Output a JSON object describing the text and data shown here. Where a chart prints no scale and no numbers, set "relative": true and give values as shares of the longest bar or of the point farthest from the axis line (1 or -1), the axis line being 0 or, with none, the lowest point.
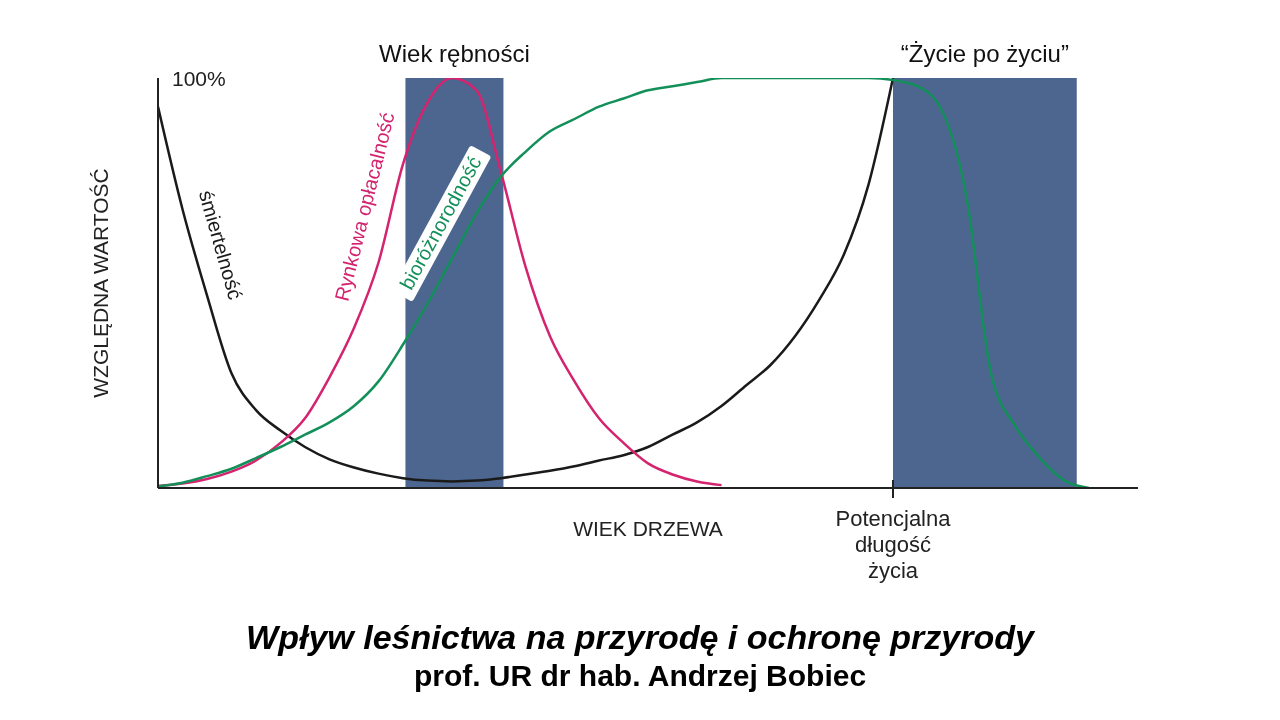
{
  "chart_data": {
    "type": "line",
    "title": "Wpływ leśnictwa na przyrodę i ochronę przyrody",
    "subtitle": "prof. UR dr hab. Andrzej Bobiec",
    "xlabel": "WIEK DRZEWA",
    "ylabel": "WZGLĘDNA WARTOŚĆ",
    "annotations": [
      "100%",
      "Wiek rębności",
      "“Życie po życiu”",
      "Potencjalna długość życia"
    ],
    "relative": true,
    "marker": "none",
    "categories": [
      null,
      null,
      null,
      null,
      null,
      null,
      null,
      null,
      null,
      null,
      null,
      null,
      null,
      null,
      null,
      null,
      null,
      null,
      null,
      null,
      null,
      null,
      null,
      null,
      null,
      null,
      null,
      null,
      null,
      null,
      null,
      null,
      null,
      null,
      null,
      null,
      null,
      null,
      null,
      null,
      null
    ],
    "series": [
      {
        "name": "śmiertelność",
        "color": "#1a1a1a",
        "values": [
          0.93,
          0.68,
          0.47,
          0.28,
          0.19,
          0.14,
          0.1,
          0.07,
          0.05,
          0.035,
          0.024,
          0.018,
          0.016,
          0.018,
          0.024,
          0.033,
          0.042,
          0.053,
          0.067,
          0.08,
          0.1,
          0.13,
          0.16,
          0.2,
          0.25,
          0.3,
          0.37,
          0.46,
          0.57,
          0.74,
          1.0,
          null,
          null,
          null,
          null,
          null,
          null,
          null,
          null,
          null,
          null
        ]
      },
      {
        "name": "Rynkowa opłacalność",
        "color": "#d4246f",
        "values": [
          0.005,
          0.011,
          0.022,
          0.04,
          0.067,
          0.11,
          0.17,
          0.27,
          0.39,
          0.55,
          0.79,
          0.94,
          1.0,
          0.97,
          0.77,
          0.54,
          0.37,
          0.26,
          0.17,
          0.11,
          0.06,
          0.033,
          0.016,
          0.007,
          null,
          null,
          null,
          null,
          null,
          null,
          null,
          null,
          null,
          null,
          null,
          null,
          null,
          null,
          null,
          null,
          null
        ]
      },
      {
        "name": "bioróżnorodność",
        "color": "#13905a",
        "values": [
          0.004,
          0.013,
          0.029,
          0.047,
          0.073,
          0.1,
          0.13,
          0.16,
          0.2,
          0.26,
          0.35,
          0.45,
          0.56,
          0.67,
          0.76,
          0.82,
          0.87,
          0.9,
          0.93,
          0.95,
          0.97,
          0.98,
          0.99,
          1.0,
          1.0,
          1.0,
          1.0,
          1.0,
          1.0,
          1.0,
          0.995,
          0.98,
          0.92,
          0.71,
          0.28,
          0.15,
          0.073,
          0.018,
          0.0,
          null,
          null
        ]
      }
    ]
  }
}
